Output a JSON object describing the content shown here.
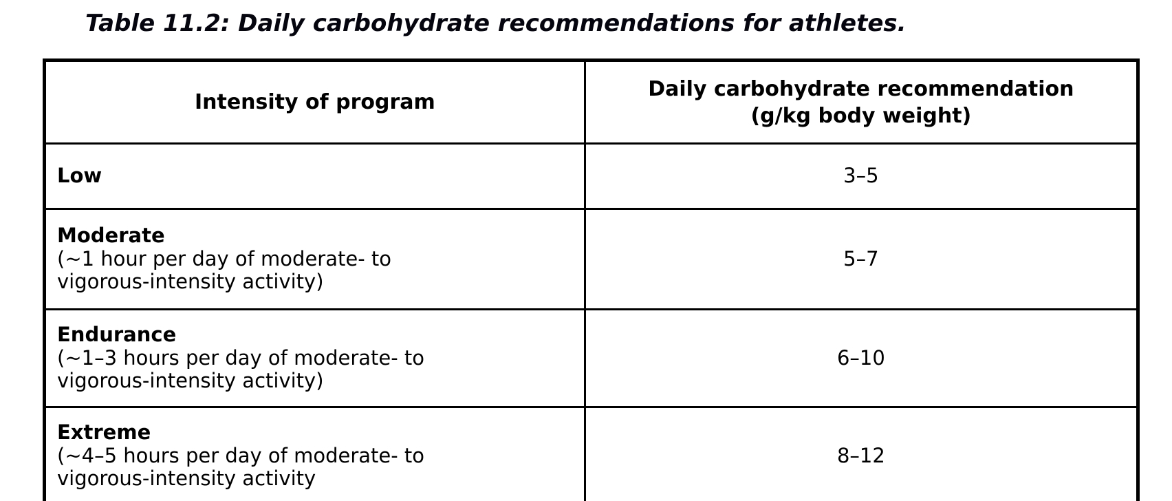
{
  "title": "Table 11.2: Daily carbohydrate recommendations for athletes.",
  "table": {
    "headers": [
      "Intensity of program",
      "Daily carbohydrate recommendation\n(g/kg body weight)"
    ],
    "rows": [
      {
        "intensity": "Low",
        "description": "",
        "value": "3–5"
      },
      {
        "intensity": "Moderate",
        "description": "(~1 hour per day of moderate- to\nvigorous-intensity activity)",
        "value": "5–7"
      },
      {
        "intensity": "Endurance",
        "description": "(~1–3 hours per day of moderate- to\nvigorous-intensity activity)",
        "value": "6–10"
      },
      {
        "intensity": "Extreme",
        "description": "(~4–5 hours per day of moderate- to\nvigorous-intensity activity",
        "value": "8–12"
      }
    ]
  },
  "colors": {
    "border": "#000000",
    "text": "#000000",
    "background": "#ffffff"
  }
}
